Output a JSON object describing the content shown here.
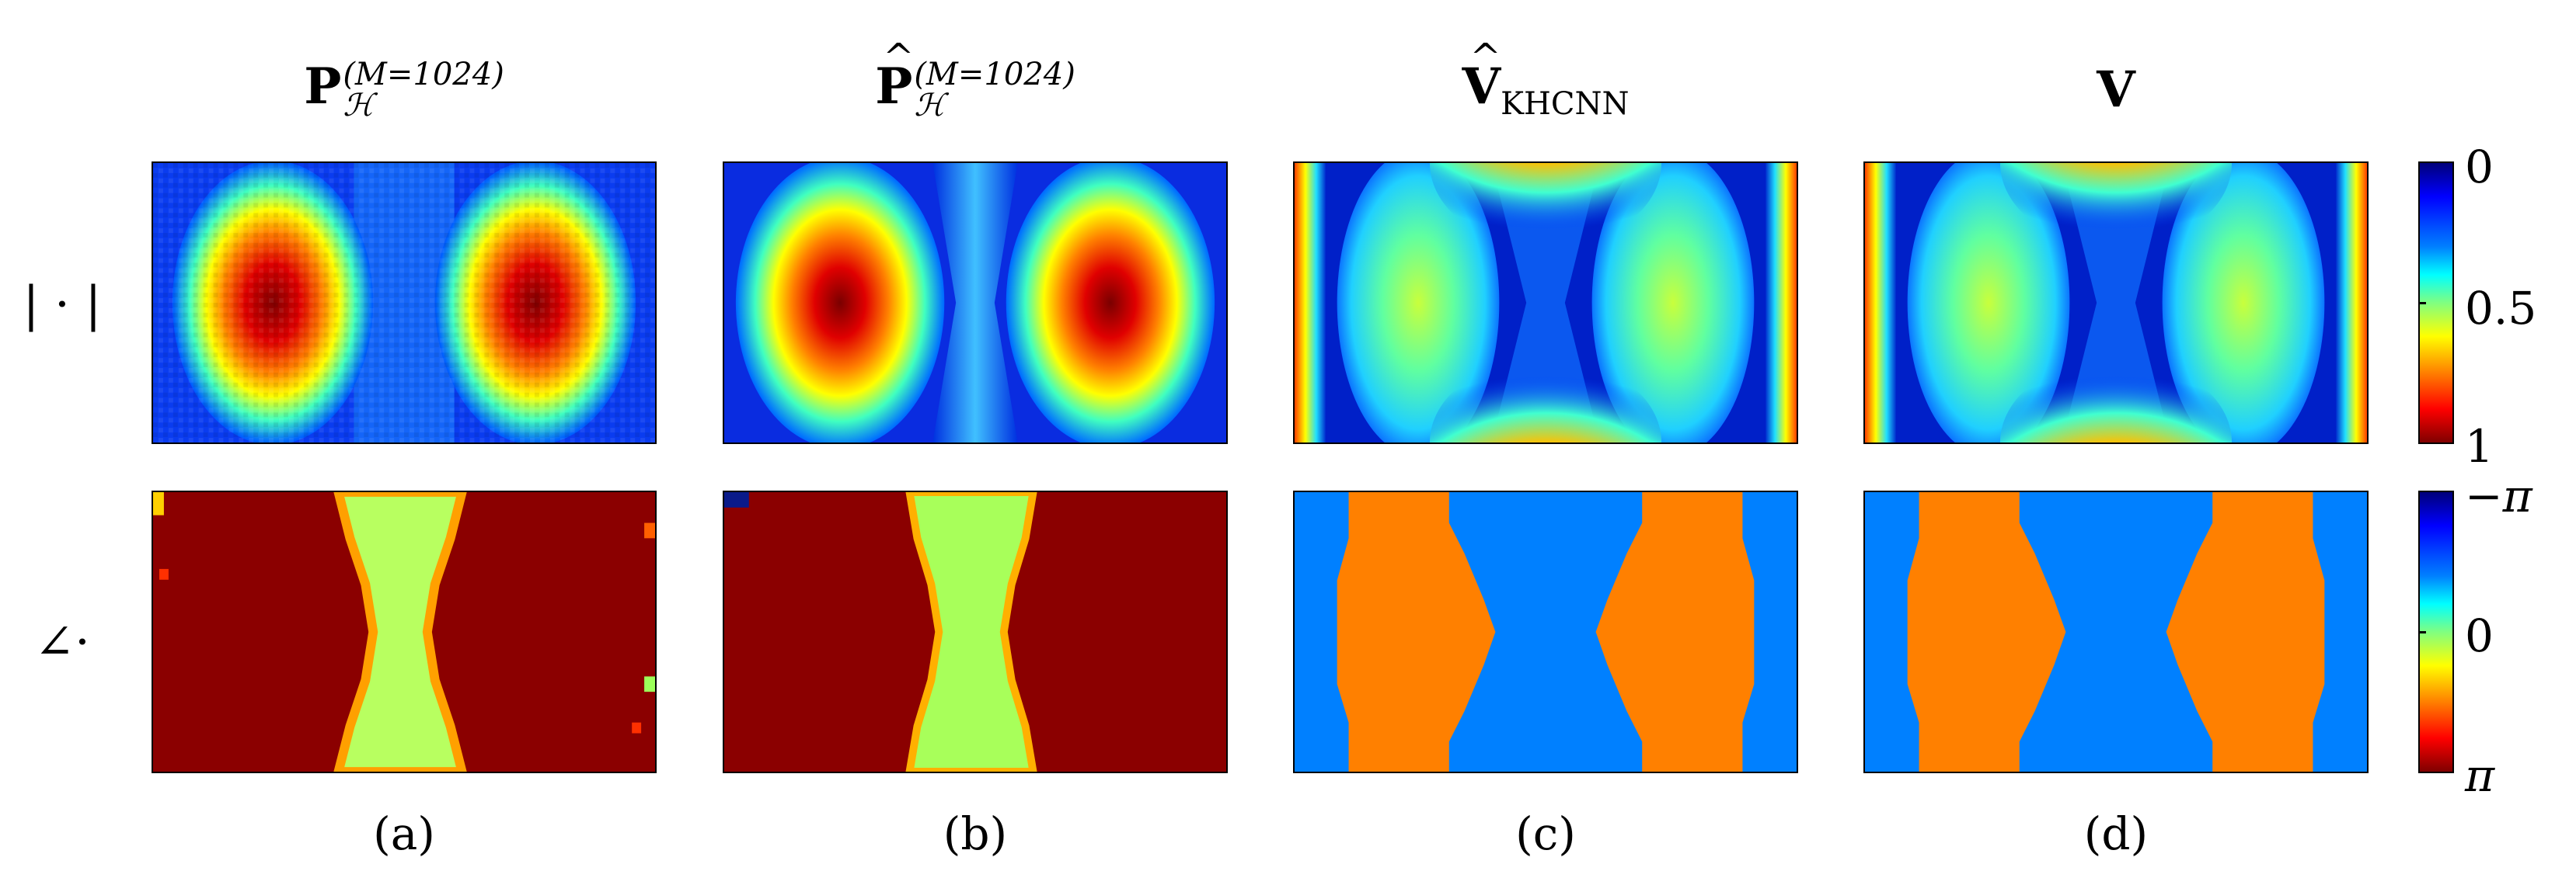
{
  "figure": {
    "columns": [
      {
        "id": "a",
        "title_base": "P",
        "title_sub": "ℋ",
        "title_sup": "(M=1024)",
        "hat": false,
        "sublabel": "(a)"
      },
      {
        "id": "b",
        "title_base": "P",
        "title_sub": "ℋ",
        "title_sup": "(M=1024)",
        "hat": true,
        "sublabel": "(b)"
      },
      {
        "id": "c",
        "title_base": "V",
        "title_sub": "KHCNN",
        "title_sup": "",
        "hat": true,
        "sublabel": "(c)"
      },
      {
        "id": "d",
        "title_base": "V",
        "title_sub": "",
        "title_sup": "",
        "hat": false,
        "sublabel": "(d)"
      }
    ],
    "rows": [
      {
        "id": "magnitude",
        "label": "| · |"
      },
      {
        "id": "phase",
        "label": "∠·"
      }
    ],
    "colorbars": [
      {
        "row": "magnitude",
        "ticks": [
          "0",
          "0.5",
          "1"
        ]
      },
      {
        "row": "phase",
        "ticks": [
          "−π",
          "0",
          "π"
        ]
      }
    ],
    "colormap": "jet",
    "phase_colors": {
      "orange": "#ff8000",
      "blue": "#0080ff",
      "darkred": "#8b0000",
      "lightgreen": "#9cff5a"
    }
  }
}
